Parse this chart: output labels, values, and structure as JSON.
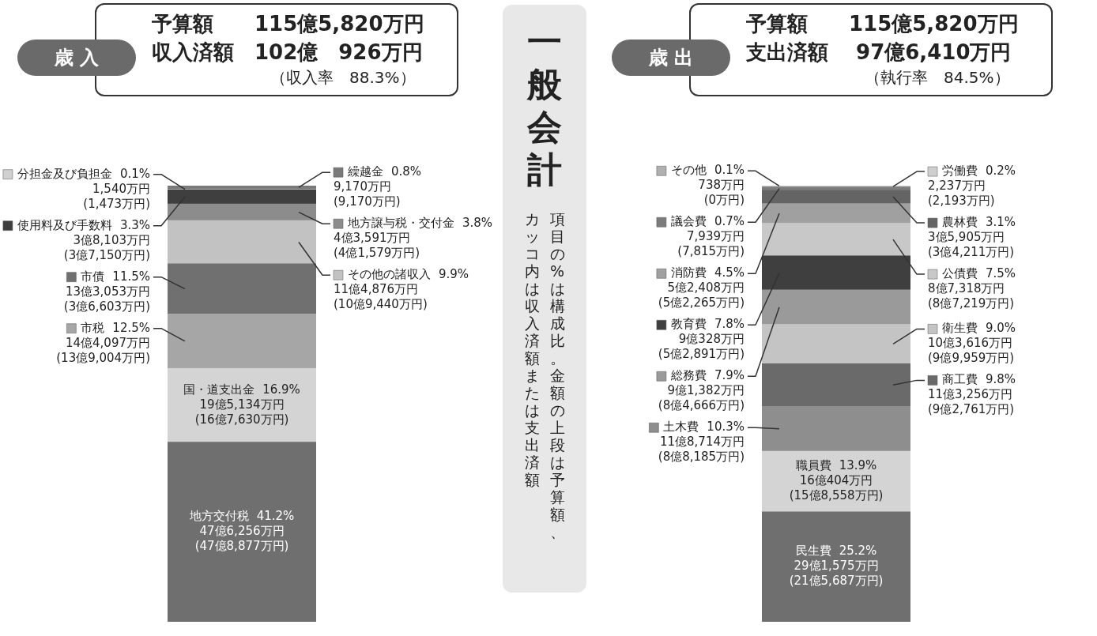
{
  "chart_data": [
    {
      "type": "bar",
      "title": "歳 入",
      "stacked": true,
      "categories": [
        null
      ],
      "legend": "left",
      "annotations": [
        "予算額　　115億5,820万円",
        "収入済額　102億　926万円",
        "（収入率　88.3%）"
      ],
      "series": [
        {
          "name": "地方交付税",
          "color": "#6f6f6f",
          "values": [
            41.2
          ],
          "value_labels": [
            "41.2%\n47億6,256万円\n(47億8,877万円)"
          ]
        },
        {
          "name": "国・道支出金",
          "color": "#d4d4d4",
          "values": [
            16.9
          ],
          "value_labels": [
            "16.9%\n19億5,134万円\n(16億7,630万円)"
          ]
        },
        {
          "name": "市税",
          "color": "#a6a6a6",
          "values": [
            12.5
          ],
          "value_labels": [
            "12.5%\n14億4,097万円\n(13億9,004万円)"
          ]
        },
        {
          "name": "市債",
          "color": "#707070",
          "values": [
            11.5
          ],
          "value_labels": [
            "11.5%\n13億3,053万円\n(3億6,603万円)"
          ]
        },
        {
          "name": "その他の諸収入",
          "color": "#c2c2c2",
          "values": [
            9.9
          ],
          "value_labels": [
            "9.9%\n11億4,876万円\n(10億9,440万円)"
          ]
        },
        {
          "name": "地方譲与税・交付金",
          "color": "#8c8c8c",
          "values": [
            3.8
          ],
          "value_labels": [
            "3.8%\n4億3,591万円\n(4億1,579万円)"
          ]
        },
        {
          "name": "使用料及び手数料",
          "color": "#3f3f3f",
          "values": [
            3.3
          ],
          "value_labels": [
            "3.3%\n3億8,103万円\n(3億7,150万円)"
          ]
        },
        {
          "name": "分担金及び負担金",
          "color": "#d0d0d0",
          "values": [
            0.1
          ],
          "value_labels": [
            "0.1%\n1,540万円\n(1,473万円)"
          ]
        },
        {
          "name": "繰越金",
          "color": "#7a7a7a",
          "values": [
            0.8
          ],
          "value_labels": [
            "0.8%\n9,170万円\n(9,170万円)"
          ]
        }
      ]
    },
    {
      "type": "other",
      "title": "一般会計",
      "annotations": [
        "項目の%は構成比。金額の上段は予算額、",
        "カッコ内は収入済額または支出済額"
      ]
    },
    {
      "type": "bar",
      "title": "歳 出",
      "stacked": true,
      "categories": [
        null
      ],
      "legend": "left",
      "annotations": [
        "予算額　　115億5,820万円",
        "支出済額　 97億6,410万円",
        "（執行率　84.5%）"
      ],
      "series": [
        {
          "name": "民生費",
          "color": "#6f6f6f",
          "values": [
            25.2
          ],
          "value_labels": [
            "25.2%\n29億1,575万円\n(21億5,687万円)"
          ]
        },
        {
          "name": "職員費",
          "color": "#d4d4d4",
          "values": [
            13.9
          ],
          "value_labels": [
            "13.9%\n16億404万円\n(15億8,558万円)"
          ]
        },
        {
          "name": "土木費",
          "color": "#8e8e8e",
          "values": [
            10.3
          ],
          "value_labels": [
            "10.3%\n11億8,714万円\n(8億8,185万円)"
          ]
        },
        {
          "name": "商工費",
          "color": "#6a6a6a",
          "values": [
            9.8
          ],
          "value_labels": [
            "9.8%\n11億3,256万円\n(9億2,761万円)"
          ]
        },
        {
          "name": "衛生費",
          "color": "#c4c4c4",
          "values": [
            9.0
          ],
          "value_labels": [
            "9.0%\n10億3,616万円\n(9億9,959万円)"
          ]
        },
        {
          "name": "総務費",
          "color": "#9a9a9a",
          "values": [
            7.9
          ],
          "value_labels": [
            "7.9%\n9億1,382万円\n(8億4,666万円)"
          ]
        },
        {
          "name": "教育費",
          "color": "#3f3f3f",
          "values": [
            7.8
          ],
          "value_labels": [
            "7.8%\n9億328万円\n(5億2,891万円)"
          ]
        },
        {
          "name": "公債費",
          "color": "#c8c8c8",
          "values": [
            7.5
          ],
          "value_labels": [
            "7.5%\n8億7,318万円\n(8億7,219万円)"
          ]
        },
        {
          "name": "消防費",
          "color": "#a0a0a0",
          "values": [
            4.5
          ],
          "value_labels": [
            "4.5%\n5億2,408万円\n(5億2,265万円)"
          ]
        },
        {
          "name": "農林費",
          "color": "#646464",
          "values": [
            3.1
          ],
          "value_labels": [
            "3.1%\n3億5,905万円\n(3億4,211万円)"
          ]
        },
        {
          "name": "議会費",
          "color": "#7c7c7c",
          "values": [
            0.7
          ],
          "value_labels": [
            "0.7%\n7,939万円\n(7,815万円)"
          ]
        },
        {
          "name": "労働費",
          "color": "#cfcfcf",
          "values": [
            0.2
          ],
          "value_labels": [
            "0.2%\n2,237万円\n(2,193万円)"
          ]
        },
        {
          "name": "その他",
          "color": "#b0b0b0",
          "values": [
            0.1
          ],
          "value_labels": [
            "0.1%\n738万円\n(0万円)"
          ]
        }
      ]
    }
  ]
}
